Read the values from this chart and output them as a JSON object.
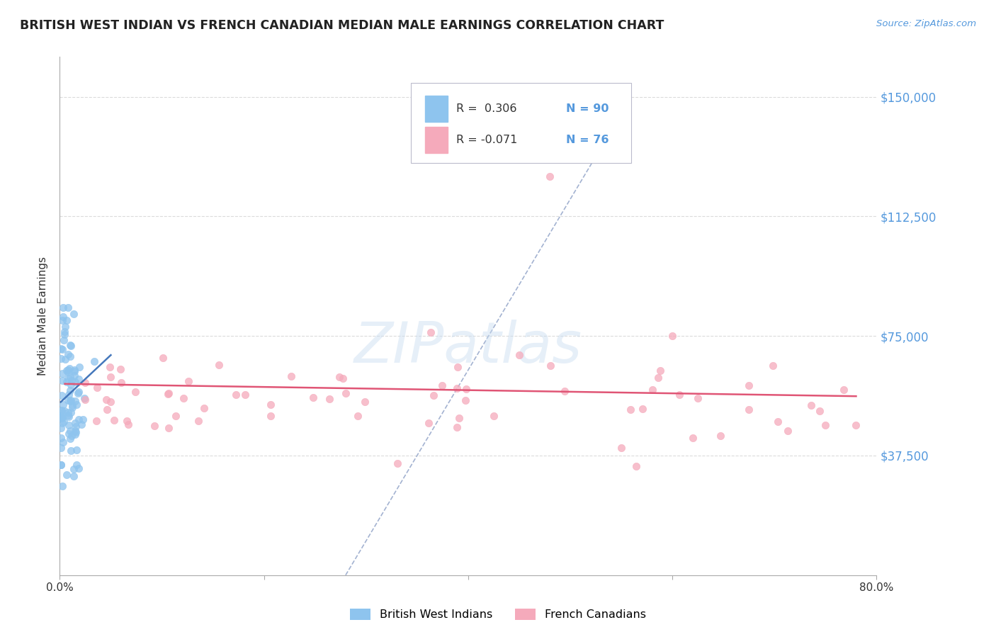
{
  "title": "BRITISH WEST INDIAN VS FRENCH CANADIAN MEDIAN MALE EARNINGS CORRELATION CHART",
  "source": "Source: ZipAtlas.com",
  "ylabel": "Median Male Earnings",
  "ytick_labels": [
    "",
    "$37,500",
    "$75,000",
    "$112,500",
    "$150,000"
  ],
  "ytick_values": [
    0,
    37500,
    75000,
    112500,
    150000
  ],
  "xlim": [
    0.0,
    0.8
  ],
  "ylim": [
    0,
    162500
  ],
  "legend_r1": "R =  0.306",
  "legend_n1": "N = 90",
  "legend_r2": "R = -0.071",
  "legend_n2": "N = 76",
  "color_bwi": "#8EC4EE",
  "color_fc": "#F5AABB",
  "color_bwi_line": "#4477BB",
  "color_fc_line": "#E05575",
  "color_diag": "#99AACC",
  "color_grid": "#CCCCCC",
  "color_ytick": "#5599DD",
  "color_title": "#222222",
  "watermark": "ZIPatlas",
  "label_bwi": "British West Indians",
  "label_fc": "French Canadians",
  "legend_color_r": "#333333",
  "legend_color_n": "#5599DD"
}
